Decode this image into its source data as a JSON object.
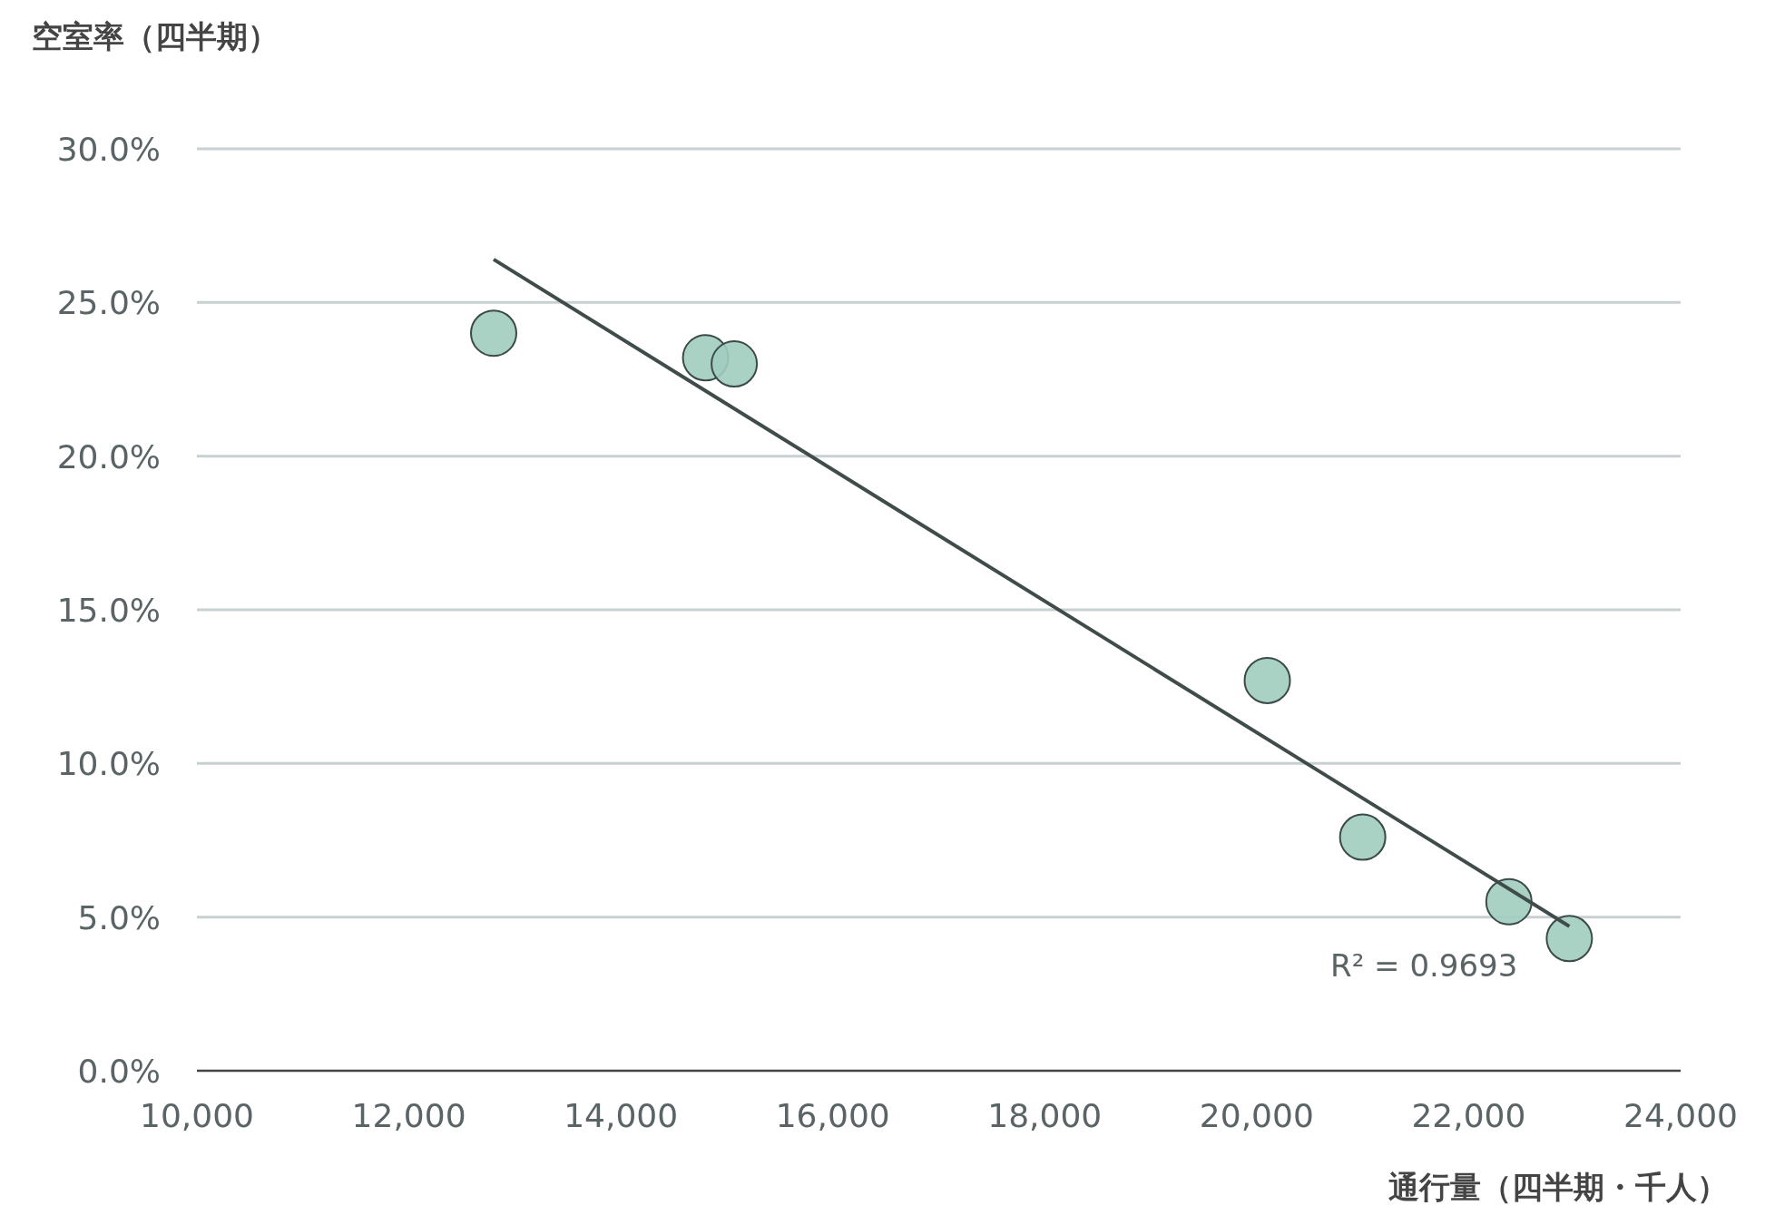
{
  "chart_data": {
    "type": "scatter",
    "xlabel": "通行量（四半期・千人）",
    "ylabel": "空室率（四半期）",
    "xlim": [
      10000,
      24000
    ],
    "ylim": [
      0,
      30
    ],
    "xticks": [
      {
        "value": 10000,
        "label": "10,000"
      },
      {
        "value": 12000,
        "label": "12,000"
      },
      {
        "value": 14000,
        "label": "14,000"
      },
      {
        "value": 16000,
        "label": "16,000"
      },
      {
        "value": 18000,
        "label": "18,000"
      },
      {
        "value": 20000,
        "label": "20,000"
      },
      {
        "value": 22000,
        "label": "22,000"
      },
      {
        "value": 24000,
        "label": "24,000"
      }
    ],
    "yticks": [
      {
        "value": 0,
        "label": "0.0%"
      },
      {
        "value": 5,
        "label": "5.0%"
      },
      {
        "value": 10,
        "label": "10.0%"
      },
      {
        "value": 15,
        "label": "15.0%"
      },
      {
        "value": 20,
        "label": "20.0%"
      },
      {
        "value": 25,
        "label": "25.0%"
      },
      {
        "value": 30,
        "label": "30.0%"
      }
    ],
    "grid": "y",
    "series": [
      {
        "marker": "circle",
        "color": "#a0cdbf",
        "x": [
          12800,
          14800,
          15070,
          20100,
          21000,
          22380,
          22950
        ],
        "values": [
          24.0,
          23.2,
          23.0,
          12.7,
          7.6,
          5.5,
          4.3
        ]
      },
      {
        "type": "line",
        "color": "#3f4c4b",
        "x": [
          12800,
          22950
        ],
        "values": [
          26.4,
          4.7
        ]
      }
    ],
    "annotations": [
      "R² = 0.9693"
    ]
  }
}
